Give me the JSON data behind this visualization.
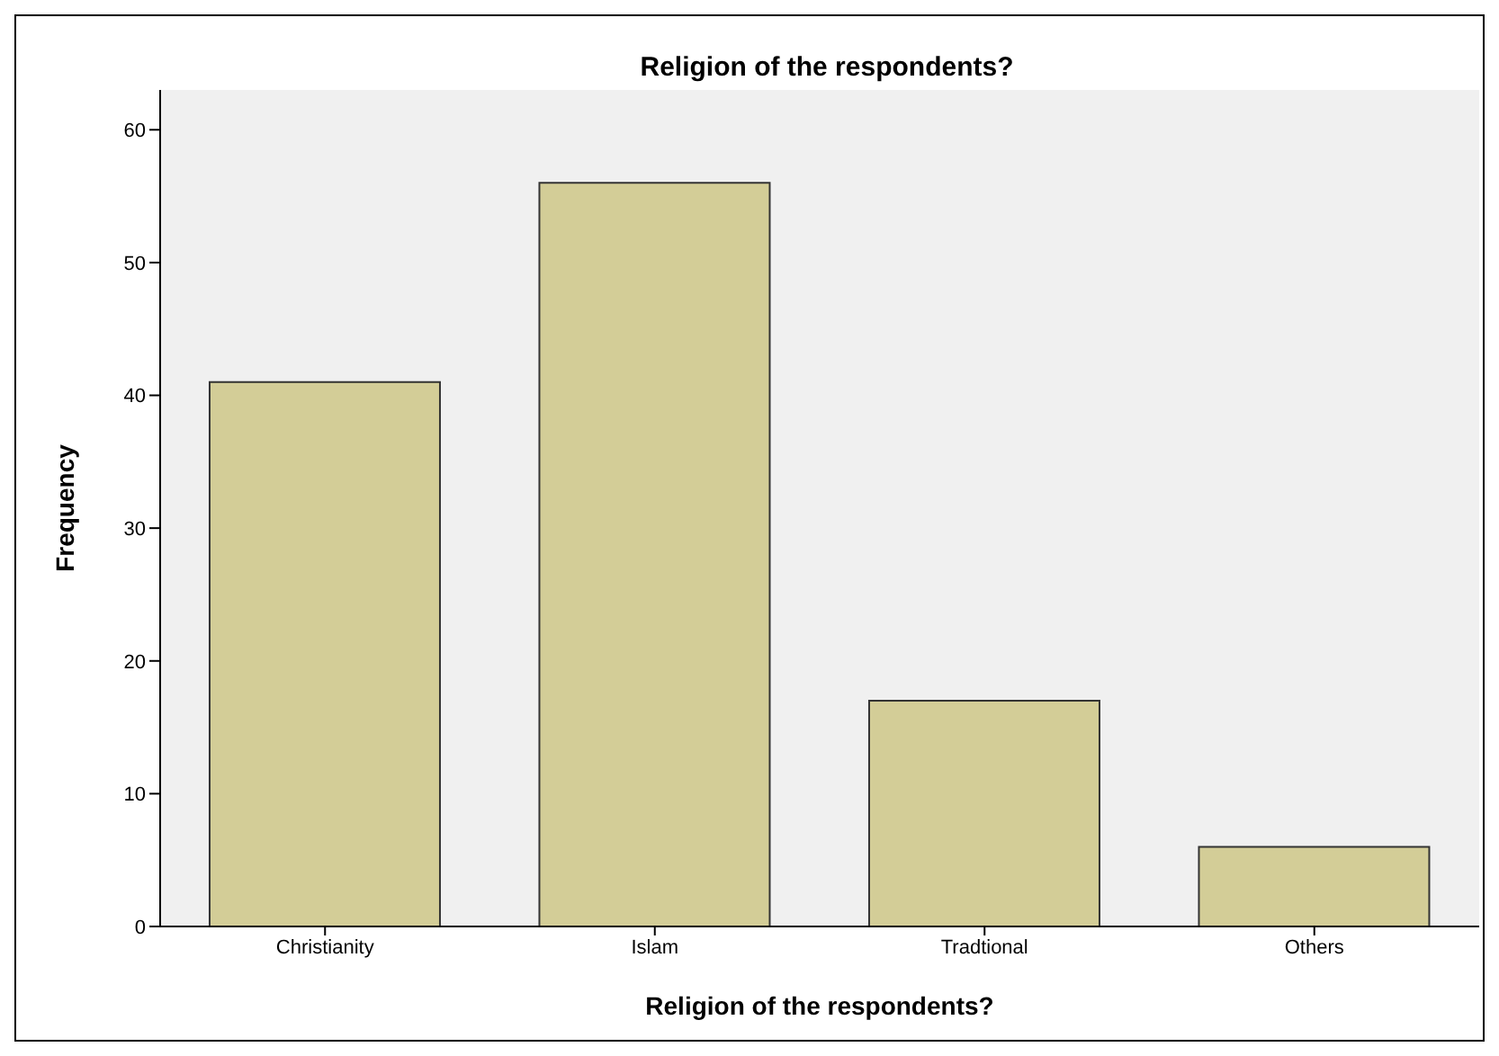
{
  "chart_data": {
    "type": "bar",
    "title": "Religion of the respondents?",
    "xlabel": "Religion of the respondents?",
    "ylabel": "Frequency",
    "categories": [
      "Christianity",
      "Islam",
      "Tradtional",
      "Others"
    ],
    "values": [
      41,
      56,
      17,
      6
    ],
    "color": "#d3cd97",
    "ylim": [
      0,
      63
    ],
    "yticks": [
      0,
      10,
      20,
      30,
      40,
      50,
      60
    ],
    "grid": false
  }
}
